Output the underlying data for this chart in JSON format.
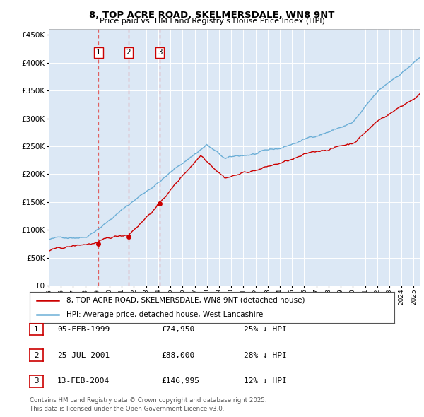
{
  "title": "8, TOP ACRE ROAD, SKELMERSDALE, WN8 9NT",
  "subtitle": "Price paid vs. HM Land Registry's House Price Index (HPI)",
  "legend_line1": "8, TOP ACRE ROAD, SKELMERSDALE, WN8 9NT (detached house)",
  "legend_line2": "HPI: Average price, detached house, West Lancashire",
  "transactions": [
    {
      "label": "1",
      "date": "05-FEB-1999",
      "price": 74950,
      "price_str": "£74,950",
      "pct": "25% ↓ HPI",
      "x_year": 1999.09
    },
    {
      "label": "2",
      "date": "25-JUL-2001",
      "price": 88000,
      "price_str": "£88,000",
      "pct": "28% ↓ HPI",
      "x_year": 2001.56
    },
    {
      "label": "3",
      "date": "13-FEB-2004",
      "price": 146995,
      "price_str": "£146,995",
      "pct": "12% ↓ HPI",
      "x_year": 2004.12
    }
  ],
  "footnote1": "Contains HM Land Registry data © Crown copyright and database right 2025.",
  "footnote2": "This data is licensed under the Open Government Licence v3.0.",
  "hpi_color": "#6baed6",
  "price_color": "#cc0000",
  "vline_color": "#e06060",
  "bg_color": "#dce8f5",
  "grid_color": "#ffffff",
  "box_color": "#cc0000",
  "ylim": [
    0,
    460000
  ],
  "xlim_start": 1995.0,
  "xlim_end": 2025.5,
  "yticks": [
    0,
    50000,
    100000,
    150000,
    200000,
    250000,
    300000,
    350000,
    400000,
    450000
  ]
}
